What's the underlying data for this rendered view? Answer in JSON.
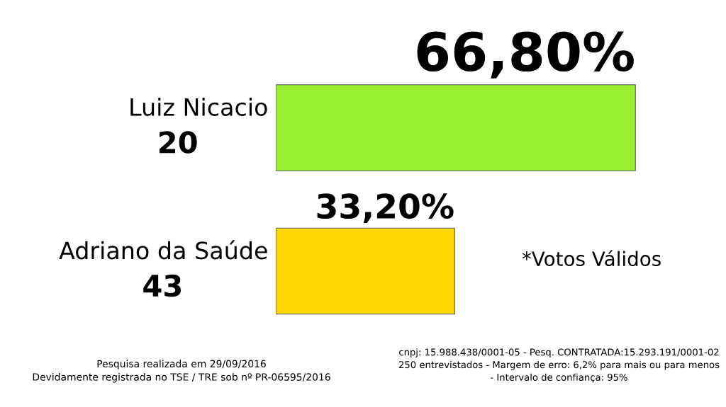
{
  "chart_data": {
    "type": "bar",
    "orientation": "horizontal",
    "categories": [
      "Luiz Nicacio\n20",
      "Adriano da Saúde\n43"
    ],
    "values": [
      66.8,
      33.2
    ],
    "colors": [
      "#99f033",
      "#ffd800"
    ],
    "value_labels": [
      "66,80%",
      "33,20%"
    ],
    "annotations": [
      "*Votos Válidos",
      "Pesquisa realizada em 29/09/2016\nDevidamente registrada no TSE / TRE sob nº PR-06595/2016",
      "cnpj: 15.988.438/0001-05 - Pesq. CONTRATADA:15.293.191/0001-02\n250 entrevistados - Margem de erro: 6,2% para mais ou para menos\n- Intervalo de confiança: 95%"
    ]
  }
}
